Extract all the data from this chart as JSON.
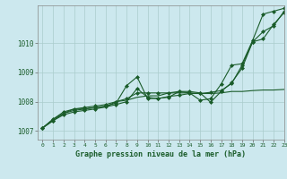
{
  "title": "Graphe pression niveau de la mer (hPa)",
  "background_color": "#cce8ee",
  "grid_color": "#aacccc",
  "line_color": "#1a5c2a",
  "xlim": [
    -0.5,
    23
  ],
  "ylim": [
    1006.7,
    1011.3
  ],
  "xticks": [
    0,
    1,
    2,
    3,
    4,
    5,
    6,
    7,
    8,
    9,
    10,
    11,
    12,
    13,
    14,
    15,
    16,
    17,
    18,
    19,
    20,
    21,
    22,
    23
  ],
  "yticks": [
    1007,
    1008,
    1009,
    1010
  ],
  "series": [
    {
      "x": [
        0,
        1,
        2,
        3,
        4,
        5,
        6,
        7,
        8,
        9,
        10,
        11,
        12,
        13,
        14,
        15,
        16,
        17,
        18,
        19,
        20,
        21,
        22,
        23
      ],
      "y": [
        1007.1,
        1007.35,
        1007.55,
        1007.65,
        1007.7,
        1007.75,
        1007.82,
        1007.9,
        1008.0,
        1008.45,
        1008.15,
        1008.1,
        1008.18,
        1008.22,
        1008.28,
        1008.28,
        1008.32,
        1008.38,
        1008.62,
        1009.25,
        1010.05,
        1010.4,
        1010.6,
        1011.1
      ],
      "marker": "D",
      "ms": 2.0
    },
    {
      "x": [
        0,
        1,
        2,
        3,
        4,
        5,
        6,
        7,
        8,
        9,
        10,
        11,
        12,
        13,
        14,
        15,
        16,
        17,
        18,
        19,
        20,
        21,
        22,
        23
      ],
      "y": [
        1007.1,
        1007.35,
        1007.6,
        1007.7,
        1007.75,
        1007.8,
        1007.85,
        1007.95,
        1008.55,
        1008.85,
        1008.1,
        1008.12,
        1008.15,
        1008.35,
        1008.35,
        1008.3,
        1007.98,
        1008.35,
        1008.65,
        1009.15,
        1010.05,
        1010.15,
        1010.65,
        1011.05
      ],
      "marker": "D",
      "ms": 2.0
    },
    {
      "x": [
        0,
        1,
        2,
        3,
        4,
        5,
        6,
        7,
        8,
        9,
        10,
        11,
        12,
        13,
        14,
        15,
        16,
        17,
        18,
        19,
        20,
        21,
        22,
        23
      ],
      "y": [
        1007.1,
        1007.4,
        1007.6,
        1007.75,
        1007.75,
        1007.8,
        1007.82,
        1008.0,
        1008.05,
        1008.15,
        1008.2,
        1008.2,
        1008.3,
        1008.3,
        1008.3,
        1008.28,
        1008.28,
        1008.3,
        1008.35,
        1008.35,
        1008.38,
        1008.4,
        1008.4,
        1008.42
      ],
      "marker": null,
      "ms": 0
    },
    {
      "x": [
        0,
        1,
        2,
        3,
        4,
        5,
        6,
        7,
        8,
        9,
        10,
        11,
        12,
        13,
        14,
        15,
        16,
        17,
        18,
        19,
        20,
        21,
        22,
        23
      ],
      "y": [
        1007.1,
        1007.4,
        1007.65,
        1007.75,
        1007.8,
        1007.85,
        1007.9,
        1008.0,
        1008.1,
        1008.3,
        1008.3,
        1008.3,
        1008.3,
        1008.35,
        1008.3,
        1008.05,
        1008.1,
        1008.6,
        1009.25,
        1009.3,
        1010.1,
        1011.0,
        1011.1,
        1011.2
      ],
      "marker": "D",
      "ms": 2.0
    }
  ]
}
